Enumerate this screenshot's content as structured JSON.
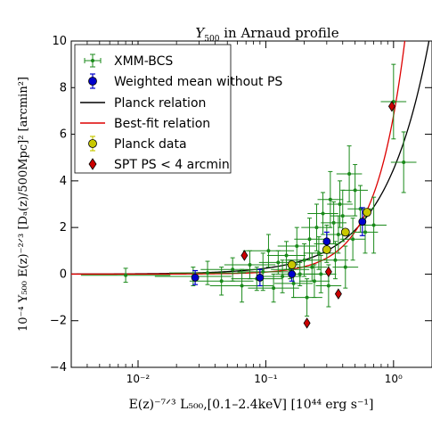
{
  "chart_data": {
    "type": "scatter",
    "title_main": "Y",
    "title_sub": "500",
    "title_rest": " in Arnaud profile",
    "xlabel": "E(z)⁻⁷ᐟ³ L₅₀₀,[0.1–2.4keV] [10⁴⁴ erg s⁻¹]",
    "ylabel": "10⁻⁴ Y₅₀₀ E(z)⁻²ᐟ³ [Dₐ(z)/500Mpc]² [arcmin²]",
    "xscale": "log",
    "xlim": [
      0.003,
      2.0
    ],
    "ylim": [
      -4,
      10
    ],
    "x_ticks": [
      0.01,
      0.1,
      1
    ],
    "x_tick_labels": [
      "10⁻²",
      "10⁻¹",
      "10⁰"
    ],
    "y_ticks": [
      -4,
      -2,
      0,
      2,
      4,
      6,
      8,
      10
    ],
    "y_tick_labels": [
      "−4",
      "−2",
      "0",
      "2",
      "4",
      "6",
      "8",
      "10"
    ],
    "legend_position": "top-left",
    "legend": [
      {
        "label": "XMM-BCS",
        "marker": "point-errorbar",
        "color": "#1a8a1a"
      },
      {
        "label": "Weighted mean without PS",
        "marker": "circle-errorbar",
        "color": "#0000cc"
      },
      {
        "label": "Planck relation",
        "marker": "line",
        "color": "#000000"
      },
      {
        "label": "Best-fit relation",
        "marker": "line",
        "color": "#dd0000"
      },
      {
        "label": "Planck data",
        "marker": "circle-errorbar",
        "color": "#c8c800"
      },
      {
        "label": "SPT PS < 4 arcmin",
        "marker": "diamond",
        "color": "#cc0000"
      }
    ],
    "series": [
      {
        "name": "XMM-BCS",
        "color": "#1a8a1a",
        "points": [
          {
            "x": 0.008,
            "y": -0.05,
            "xerr": 0.35,
            "yerr": 0.3
          },
          {
            "x": 0.027,
            "y": -0.1,
            "xerr": 0.3,
            "yerr": 0.4
          },
          {
            "x": 0.035,
            "y": 0.05,
            "xerr": 0.3,
            "yerr": 0.5
          },
          {
            "x": 0.045,
            "y": -0.3,
            "xerr": 0.25,
            "yerr": 0.6
          },
          {
            "x": 0.055,
            "y": 0.2,
            "xerr": 0.25,
            "yerr": 0.5
          },
          {
            "x": 0.065,
            "y": -0.5,
            "xerr": 0.25,
            "yerr": 0.7
          },
          {
            "x": 0.075,
            "y": 0.4,
            "xerr": 0.2,
            "yerr": 0.6
          },
          {
            "x": 0.085,
            "y": -0.2,
            "xerr": 0.2,
            "yerr": 0.5
          },
          {
            "x": 0.095,
            "y": 0.1,
            "xerr": 0.2,
            "yerr": 0.8
          },
          {
            "x": 0.105,
            "y": 1.0,
            "xerr": 0.2,
            "yerr": 0.7
          },
          {
            "x": 0.115,
            "y": -0.6,
            "xerr": 0.2,
            "yerr": 0.6
          },
          {
            "x": 0.125,
            "y": 0.5,
            "xerr": 0.15,
            "yerr": 0.5
          },
          {
            "x": 0.135,
            "y": -0.1,
            "xerr": 0.15,
            "yerr": 0.7
          },
          {
            "x": 0.145,
            "y": 0.8,
            "xerr": 0.15,
            "yerr": 0.6
          },
          {
            "x": 0.155,
            "y": 0.2,
            "xerr": 0.15,
            "yerr": 0.4
          },
          {
            "x": 0.165,
            "y": -0.4,
            "xerr": 0.15,
            "yerr": 0.6
          },
          {
            "x": 0.175,
            "y": 1.2,
            "xerr": 0.15,
            "yerr": 0.8
          },
          {
            "x": 0.185,
            "y": 0.0,
            "xerr": 0.15,
            "yerr": 0.5
          },
          {
            "x": 0.2,
            "y": 0.6,
            "xerr": 0.15,
            "yerr": 0.7
          },
          {
            "x": 0.21,
            "y": -1.0,
            "xerr": 0.12,
            "yerr": 0.8
          },
          {
            "x": 0.22,
            "y": 1.5,
            "xerr": 0.12,
            "yerr": 0.9
          },
          {
            "x": 0.23,
            "y": 0.3,
            "xerr": 0.12,
            "yerr": 0.6
          },
          {
            "x": 0.24,
            "y": -0.3,
            "xerr": 0.12,
            "yerr": 0.7
          },
          {
            "x": 0.25,
            "y": 2.0,
            "xerr": 0.12,
            "yerr": 1.0
          },
          {
            "x": 0.26,
            "y": 0.9,
            "xerr": 0.12,
            "yerr": 0.7
          },
          {
            "x": 0.27,
            "y": 0.0,
            "xerr": 0.12,
            "yerr": 0.8
          },
          {
            "x": 0.28,
            "y": 2.6,
            "xerr": 0.12,
            "yerr": 0.9
          },
          {
            "x": 0.3,
            "y": 1.3,
            "xerr": 0.1,
            "yerr": 0.8
          },
          {
            "x": 0.31,
            "y": -0.5,
            "xerr": 0.1,
            "yerr": 0.9
          },
          {
            "x": 0.32,
            "y": 3.2,
            "xerr": 0.1,
            "yerr": 1.2
          },
          {
            "x": 0.34,
            "y": 2.2,
            "xerr": 0.1,
            "yerr": 0.9
          },
          {
            "x": 0.35,
            "y": 0.6,
            "xerr": 0.1,
            "yerr": 0.8
          },
          {
            "x": 0.37,
            "y": 1.7,
            "xerr": 0.1,
            "yerr": 0.8
          },
          {
            "x": 0.38,
            "y": 3.0,
            "xerr": 0.1,
            "yerr": 1.0
          },
          {
            "x": 0.4,
            "y": 2.5,
            "xerr": 0.1,
            "yerr": 1.1
          },
          {
            "x": 0.42,
            "y": 0.3,
            "xerr": 0.1,
            "yerr": 0.9
          },
          {
            "x": 0.45,
            "y": 4.3,
            "xerr": 0.1,
            "yerr": 1.2
          },
          {
            "x": 0.48,
            "y": 1.5,
            "xerr": 0.1,
            "yerr": 0.9
          },
          {
            "x": 0.5,
            "y": 3.6,
            "xerr": 0.1,
            "yerr": 1.1
          },
          {
            "x": 0.55,
            "y": 2.8,
            "xerr": 0.1,
            "yerr": 1.0
          },
          {
            "x": 0.6,
            "y": 1.8,
            "xerr": 0.1,
            "yerr": 0.9
          },
          {
            "x": 0.7,
            "y": 2.1,
            "xerr": 0.1,
            "yerr": 1.2
          },
          {
            "x": 1.0,
            "y": 7.4,
            "xerr": 0.1,
            "yerr": 1.6
          },
          {
            "x": 1.2,
            "y": 4.8,
            "xerr": 0.1,
            "yerr": 1.3
          }
        ]
      },
      {
        "name": "Weighted mean without PS",
        "color": "#0000cc",
        "points": [
          {
            "x": 0.028,
            "y": -0.15,
            "yerr": 0.3
          },
          {
            "x": 0.09,
            "y": -0.15,
            "yerr": 0.35
          },
          {
            "x": 0.16,
            "y": 0.0,
            "yerr": 0.3
          },
          {
            "x": 0.3,
            "y": 1.4,
            "yerr": 0.4
          },
          {
            "x": 0.57,
            "y": 2.25,
            "yerr": 0.6
          }
        ]
      },
      {
        "name": "Planck data",
        "color": "#c8c800",
        "points": [
          {
            "x": 0.16,
            "y": 0.4,
            "yerr": 0.1
          },
          {
            "x": 0.3,
            "y": 1.05,
            "yerr": 0.1
          },
          {
            "x": 0.42,
            "y": 1.8,
            "yerr": 0.1
          },
          {
            "x": 0.62,
            "y": 2.65,
            "yerr": 0.15
          }
        ]
      },
      {
        "name": "SPT PS < 4 arcmin",
        "color": "#cc0000",
        "points": [
          {
            "x": 0.068,
            "y": 0.8
          },
          {
            "x": 0.21,
            "y": -2.1
          },
          {
            "x": 0.31,
            "y": 0.1
          },
          {
            "x": 0.37,
            "y": -0.85
          },
          {
            "x": 0.97,
            "y": 7.2
          }
        ]
      }
    ],
    "curves": [
      {
        "name": "Planck relation",
        "color": "#000000",
        "coef": 4.5,
        "power": 1.25
      },
      {
        "name": "Best-fit relation",
        "color": "#dd0000",
        "coef": 6.8,
        "power": 1.9
      }
    ]
  }
}
